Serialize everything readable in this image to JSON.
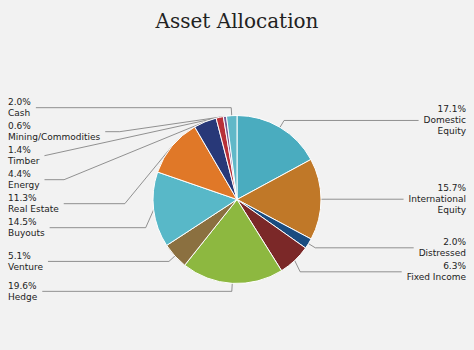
{
  "chart_data": {
    "type": "pie",
    "title": "Asset Allocation",
    "categories": [
      "Domestic\nEquity",
      "International\nEquity",
      "Distressed",
      "Fixed Income",
      "Hedge",
      "Venture",
      "Buyouts",
      "Real Estate",
      "Energy",
      "Timber",
      "Mining/Commodities",
      "Cash"
    ],
    "values": [
      17.1,
      15.7,
      2.0,
      6.3,
      19.6,
      5.1,
      14.5,
      11.3,
      4.4,
      1.4,
      0.6,
      2.0
    ],
    "value_labels": [
      "17.1%",
      "15.7%",
      "2.0%",
      "6.3%",
      "19.6%",
      "5.1%",
      "14.5%",
      "11.3%",
      "4.4%",
      "1.4%",
      "0.6%",
      "2.0%"
    ],
    "colors": [
      "#4AACBF",
      "#C07828",
      "#1A4C80",
      "#7B2828",
      "#8DB840",
      "#8B7040",
      "#58B8C8",
      "#E07828",
      "#283878",
      "#B83038",
      "#785890",
      "#60B8C8"
    ],
    "data_labels": true
  }
}
